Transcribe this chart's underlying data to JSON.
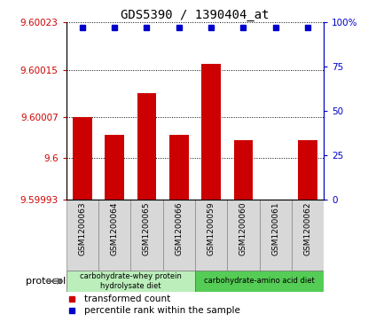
{
  "title": "GDS5390 / 1390404_at",
  "samples": [
    "GSM1200063",
    "GSM1200064",
    "GSM1200065",
    "GSM1200066",
    "GSM1200059",
    "GSM1200060",
    "GSM1200061",
    "GSM1200062"
  ],
  "transformed_counts": [
    9.60007,
    9.60004,
    9.60011,
    9.60004,
    9.60016,
    9.60003,
    9.59993,
    9.60003
  ],
  "percentile_ranks": [
    97,
    97,
    97,
    97,
    97,
    97,
    97,
    97
  ],
  "ylim_left": [
    9.59993,
    9.60023
  ],
  "yticks_left": [
    9.59993,
    9.6,
    9.60007,
    9.60015,
    9.60023
  ],
  "ytick_labels_left": [
    "9.59993",
    "9.6",
    "9.60007",
    "9.60015",
    "9.60023"
  ],
  "ylim_right": [
    0,
    100
  ],
  "yticks_right": [
    0,
    25,
    50,
    75,
    100
  ],
  "ytick_labels_right": [
    "0",
    "25",
    "50",
    "75",
    "100%"
  ],
  "bar_color": "#cc0000",
  "dot_color": "#0000cc",
  "groups": [
    {
      "label": "carbohydrate-whey protein\nhydrolysate diet",
      "start": 0,
      "end": 4,
      "color": "#bbeebb"
    },
    {
      "label": "carbohydrate-amino acid diet",
      "start": 4,
      "end": 8,
      "color": "#55cc55"
    }
  ],
  "protocol_label": "protocol",
  "legend_items": [
    {
      "color": "#cc0000",
      "label": "transformed count"
    },
    {
      "color": "#0000cc",
      "label": "percentile rank within the sample"
    }
  ],
  "plot_bg": "#ffffff",
  "tick_color_left": "#cc0000",
  "tick_color_right": "#0000cc",
  "sample_box_color": "#d8d8d8"
}
